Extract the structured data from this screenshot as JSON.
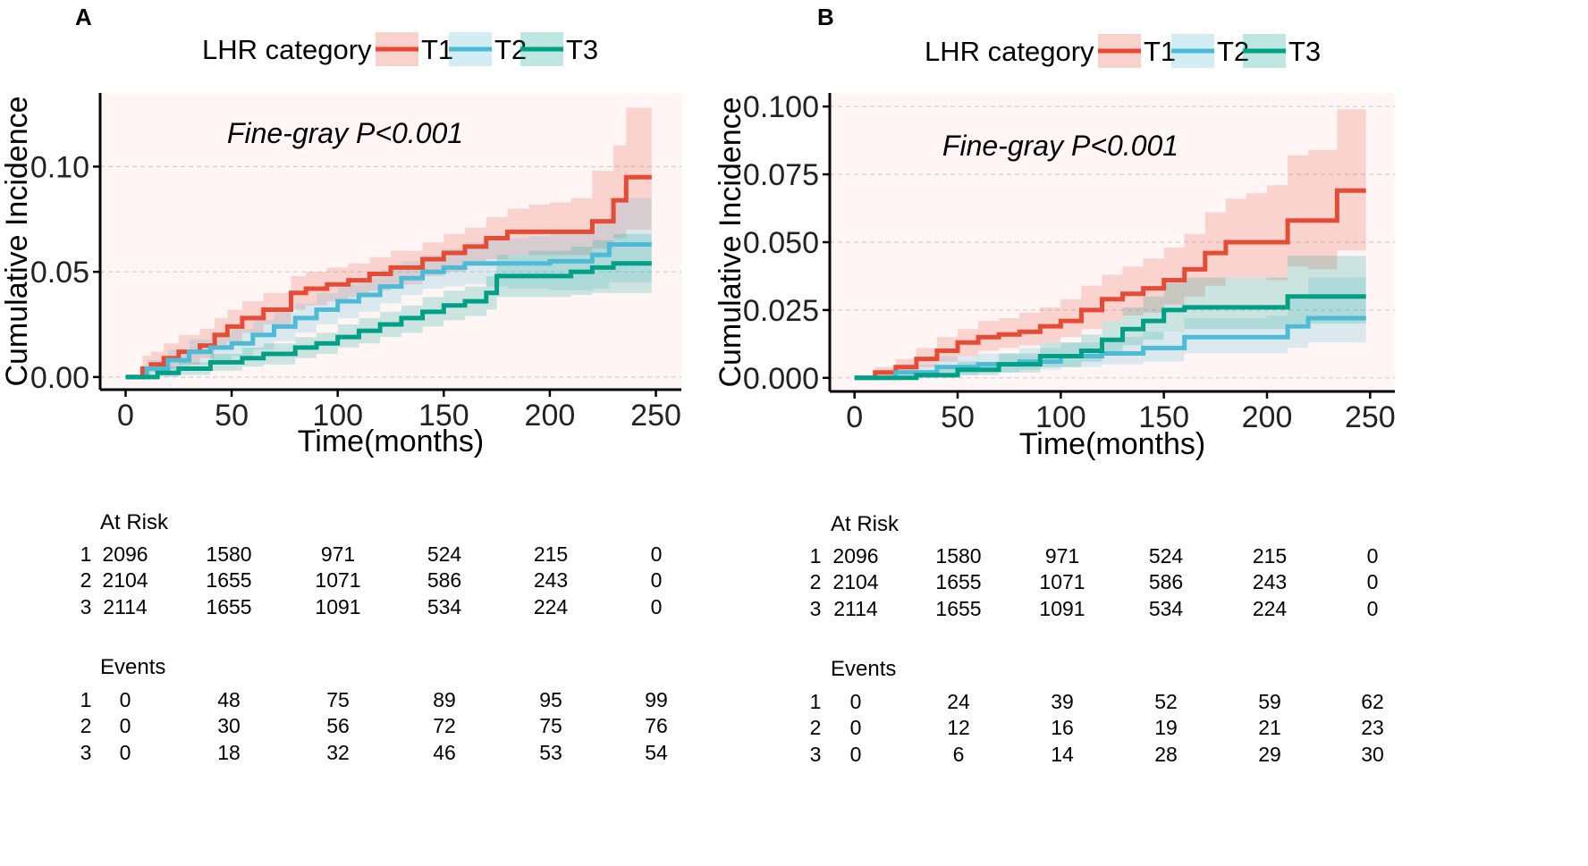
{
  "chart_data": [
    {
      "panel_label": "A",
      "type": "line",
      "subtype": "cumulative-incidence-step",
      "legend": {
        "title": "LHR category",
        "entries": [
          "T1",
          "T2",
          "T3"
        ],
        "placement": "top"
      },
      "annotation": "Fine-gray P<0.001",
      "xlabel": "Time(months)",
      "ylabel": "Cumulative Incidence",
      "xlim": [
        -12,
        262
      ],
      "ylim": [
        -0.006,
        0.135
      ],
      "xticks": [
        0,
        50,
        100,
        150,
        200,
        250
      ],
      "xtick_labels": [
        "0",
        "50",
        "100",
        "150",
        "200",
        "250"
      ],
      "yticks": [
        0.0,
        0.05,
        0.1
      ],
      "ytick_labels": [
        "0.00",
        "0.05",
        "0.10"
      ],
      "grid": "horizontal dashed",
      "series": [
        {
          "name": "T1",
          "color": "#E64B35",
          "x": [
            0,
            8,
            12,
            18,
            25,
            35,
            42,
            48,
            55,
            65,
            78,
            85,
            95,
            105,
            115,
            125,
            140,
            150,
            160,
            170,
            180,
            190,
            200,
            210,
            220,
            230,
            236,
            248
          ],
          "y": [
            0,
            0.004,
            0.006,
            0.009,
            0.012,
            0.015,
            0.02,
            0.024,
            0.028,
            0.032,
            0.04,
            0.042,
            0.044,
            0.046,
            0.049,
            0.052,
            0.056,
            0.059,
            0.062,
            0.066,
            0.069,
            0.069,
            0.069,
            0.069,
            0.074,
            0.084,
            0.095,
            0.095
          ],
          "ci_upper": [
            0,
            0.01,
            0.012,
            0.016,
            0.02,
            0.023,
            0.028,
            0.032,
            0.036,
            0.04,
            0.048,
            0.05,
            0.052,
            0.054,
            0.057,
            0.06,
            0.064,
            0.068,
            0.071,
            0.076,
            0.08,
            0.082,
            0.083,
            0.085,
            0.098,
            0.11,
            0.128,
            0.128
          ],
          "ci_lower": [
            0,
            0.001,
            0.002,
            0.004,
            0.006,
            0.009,
            0.013,
            0.017,
            0.021,
            0.025,
            0.032,
            0.034,
            0.036,
            0.038,
            0.041,
            0.044,
            0.048,
            0.05,
            0.053,
            0.056,
            0.058,
            0.058,
            0.058,
            0.058,
            0.061,
            0.066,
            0.07,
            0.07
          ]
        },
        {
          "name": "T2",
          "color": "#4DBBD5",
          "x": [
            0,
            10,
            20,
            30,
            40,
            50,
            60,
            70,
            80,
            90,
            100,
            110,
            120,
            130,
            140,
            150,
            160,
            170,
            180,
            190,
            200,
            210,
            220,
            228,
            248
          ],
          "y": [
            0,
            0.004,
            0.008,
            0.012,
            0.014,
            0.016,
            0.02,
            0.024,
            0.028,
            0.032,
            0.036,
            0.039,
            0.043,
            0.047,
            0.05,
            0.052,
            0.054,
            0.054,
            0.054,
            0.054,
            0.055,
            0.055,
            0.058,
            0.063,
            0.063
          ],
          "ci_upper": [
            0,
            0.008,
            0.013,
            0.018,
            0.021,
            0.023,
            0.027,
            0.031,
            0.035,
            0.04,
            0.044,
            0.047,
            0.051,
            0.055,
            0.058,
            0.061,
            0.064,
            0.065,
            0.066,
            0.067,
            0.069,
            0.07,
            0.075,
            0.085,
            0.085
          ],
          "ci_lower": [
            0,
            0.001,
            0.003,
            0.006,
            0.008,
            0.01,
            0.013,
            0.017,
            0.021,
            0.025,
            0.028,
            0.031,
            0.035,
            0.039,
            0.042,
            0.043,
            0.044,
            0.043,
            0.042,
            0.042,
            0.041,
            0.041,
            0.042,
            0.045,
            0.045
          ]
        },
        {
          "name": "T3",
          "color": "#00A087",
          "x": [
            0,
            15,
            25,
            40,
            55,
            65,
            80,
            90,
            100,
            110,
            120,
            130,
            140,
            150,
            160,
            170,
            175,
            190,
            210,
            220,
            230,
            248
          ],
          "y": [
            0,
            0.002,
            0.004,
            0.007,
            0.009,
            0.011,
            0.014,
            0.016,
            0.019,
            0.022,
            0.025,
            0.028,
            0.031,
            0.034,
            0.036,
            0.04,
            0.048,
            0.048,
            0.05,
            0.052,
            0.054,
            0.054
          ],
          "ci_upper": [
            0,
            0.005,
            0.007,
            0.011,
            0.014,
            0.016,
            0.019,
            0.021,
            0.025,
            0.028,
            0.031,
            0.034,
            0.038,
            0.041,
            0.043,
            0.048,
            0.058,
            0.06,
            0.062,
            0.065,
            0.068,
            0.068
          ],
          "ci_lower": [
            0,
            0.0,
            0.001,
            0.003,
            0.005,
            0.006,
            0.009,
            0.011,
            0.014,
            0.016,
            0.019,
            0.021,
            0.024,
            0.027,
            0.029,
            0.032,
            0.038,
            0.038,
            0.039,
            0.04,
            0.04,
            0.04
          ]
        }
      ],
      "table_rows": [
        {
          "title": "At Risk",
          "rows": [
            {
              "label": "1",
              "values": [
                "2096",
                "1580",
                "971",
                "524",
                "215",
                "0"
              ]
            },
            {
              "label": "2",
              "values": [
                "2104",
                "1655",
                "1071",
                "586",
                "243",
                "0"
              ]
            },
            {
              "label": "3",
              "values": [
                "2114",
                "1655",
                "1091",
                "534",
                "224",
                "0"
              ]
            }
          ]
        },
        {
          "title": "Events",
          "rows": [
            {
              "label": "1",
              "values": [
                "0",
                "48",
                "75",
                "89",
                "95",
                "99"
              ]
            },
            {
              "label": "2",
              "values": [
                "0",
                "30",
                "56",
                "72",
                "75",
                "76"
              ]
            },
            {
              "label": "3",
              "values": [
                "0",
                "18",
                "32",
                "46",
                "53",
                "54"
              ]
            }
          ]
        }
      ]
    },
    {
      "panel_label": "B",
      "type": "line",
      "subtype": "cumulative-incidence-step",
      "legend": {
        "title": "LHR category",
        "entries": [
          "T1",
          "T2",
          "T3"
        ],
        "placement": "top"
      },
      "annotation": "Fine-gray P<0.001",
      "xlabel": "Time(months)",
      "ylabel": "Cumulative Incidence",
      "xlim": [
        -12,
        262
      ],
      "ylim": [
        -0.005,
        0.105
      ],
      "xticks": [
        0,
        50,
        100,
        150,
        200,
        250
      ],
      "xtick_labels": [
        "0",
        "50",
        "100",
        "150",
        "200",
        "250"
      ],
      "yticks": [
        0.0,
        0.025,
        0.05,
        0.075,
        0.1
      ],
      "ytick_labels": [
        "0.000",
        "0.025",
        "0.050",
        "0.075",
        "0.100"
      ],
      "grid": "horizontal dashed",
      "series": [
        {
          "name": "T1",
          "color": "#E64B35",
          "x": [
            0,
            10,
            20,
            30,
            40,
            50,
            60,
            70,
            80,
            90,
            100,
            110,
            120,
            130,
            140,
            150,
            160,
            170,
            180,
            190,
            200,
            210,
            220,
            234,
            248
          ],
          "y": [
            0,
            0.002,
            0.004,
            0.007,
            0.01,
            0.013,
            0.015,
            0.016,
            0.017,
            0.019,
            0.021,
            0.025,
            0.029,
            0.031,
            0.033,
            0.036,
            0.04,
            0.046,
            0.05,
            0.05,
            0.05,
            0.058,
            0.058,
            0.069,
            0.069
          ],
          "ci_upper": [
            0,
            0.004,
            0.007,
            0.011,
            0.015,
            0.018,
            0.021,
            0.022,
            0.024,
            0.026,
            0.029,
            0.034,
            0.038,
            0.041,
            0.044,
            0.048,
            0.053,
            0.061,
            0.066,
            0.068,
            0.071,
            0.082,
            0.084,
            0.099,
            0.099
          ],
          "ci_lower": [
            0,
            0.0,
            0.002,
            0.004,
            0.006,
            0.008,
            0.01,
            0.011,
            0.012,
            0.013,
            0.015,
            0.018,
            0.021,
            0.023,
            0.024,
            0.027,
            0.03,
            0.034,
            0.037,
            0.037,
            0.036,
            0.041,
            0.04,
            0.047,
            0.047
          ]
        },
        {
          "name": "T2",
          "color": "#4DBBD5",
          "x": [
            0,
            20,
            40,
            60,
            80,
            100,
            120,
            140,
            160,
            180,
            200,
            210,
            220,
            248
          ],
          "y": [
            0,
            0.002,
            0.004,
            0.005,
            0.006,
            0.008,
            0.009,
            0.011,
            0.015,
            0.015,
            0.015,
            0.019,
            0.022,
            0.022
          ],
          "ci_upper": [
            0,
            0.005,
            0.008,
            0.009,
            0.011,
            0.013,
            0.015,
            0.017,
            0.022,
            0.022,
            0.023,
            0.029,
            0.037,
            0.037
          ],
          "ci_lower": [
            0,
            0.0,
            0.001,
            0.002,
            0.003,
            0.004,
            0.005,
            0.006,
            0.009,
            0.009,
            0.009,
            0.011,
            0.013,
            0.013
          ]
        },
        {
          "name": "T3",
          "color": "#00A087",
          "x": [
            0,
            30,
            50,
            70,
            90,
            110,
            120,
            130,
            140,
            150,
            160,
            210,
            248
          ],
          "y": [
            0,
            0.001,
            0.003,
            0.005,
            0.008,
            0.01,
            0.014,
            0.018,
            0.021,
            0.025,
            0.026,
            0.03,
            0.03
          ],
          "ci_upper": [
            0,
            0.003,
            0.006,
            0.009,
            0.013,
            0.016,
            0.021,
            0.026,
            0.03,
            0.035,
            0.037,
            0.045,
            0.045
          ],
          "ci_lower": [
            0,
            0.0,
            0.001,
            0.002,
            0.004,
            0.006,
            0.009,
            0.012,
            0.014,
            0.017,
            0.018,
            0.02,
            0.02
          ]
        }
      ],
      "table_rows": [
        {
          "title": "At Risk",
          "rows": [
            {
              "label": "1",
              "values": [
                "2096",
                "1580",
                "971",
                "524",
                "215",
                "0"
              ]
            },
            {
              "label": "2",
              "values": [
                "2104",
                "1655",
                "1071",
                "586",
                "243",
                "0"
              ]
            },
            {
              "label": "3",
              "values": [
                "2114",
                "1655",
                "1091",
                "534",
                "224",
                "0"
              ]
            }
          ]
        },
        {
          "title": "Events",
          "rows": [
            {
              "label": "1",
              "values": [
                "0",
                "24",
                "39",
                "52",
                "59",
                "62"
              ]
            },
            {
              "label": "2",
              "values": [
                "0",
                "12",
                "16",
                "19",
                "21",
                "23"
              ]
            },
            {
              "label": "3",
              "values": [
                "0",
                "6",
                "14",
                "28",
                "29",
                "30"
              ]
            }
          ]
        }
      ]
    }
  ],
  "colors": {
    "panel_background": "#FFF5F5",
    "gridline": "#D0D0D0"
  }
}
